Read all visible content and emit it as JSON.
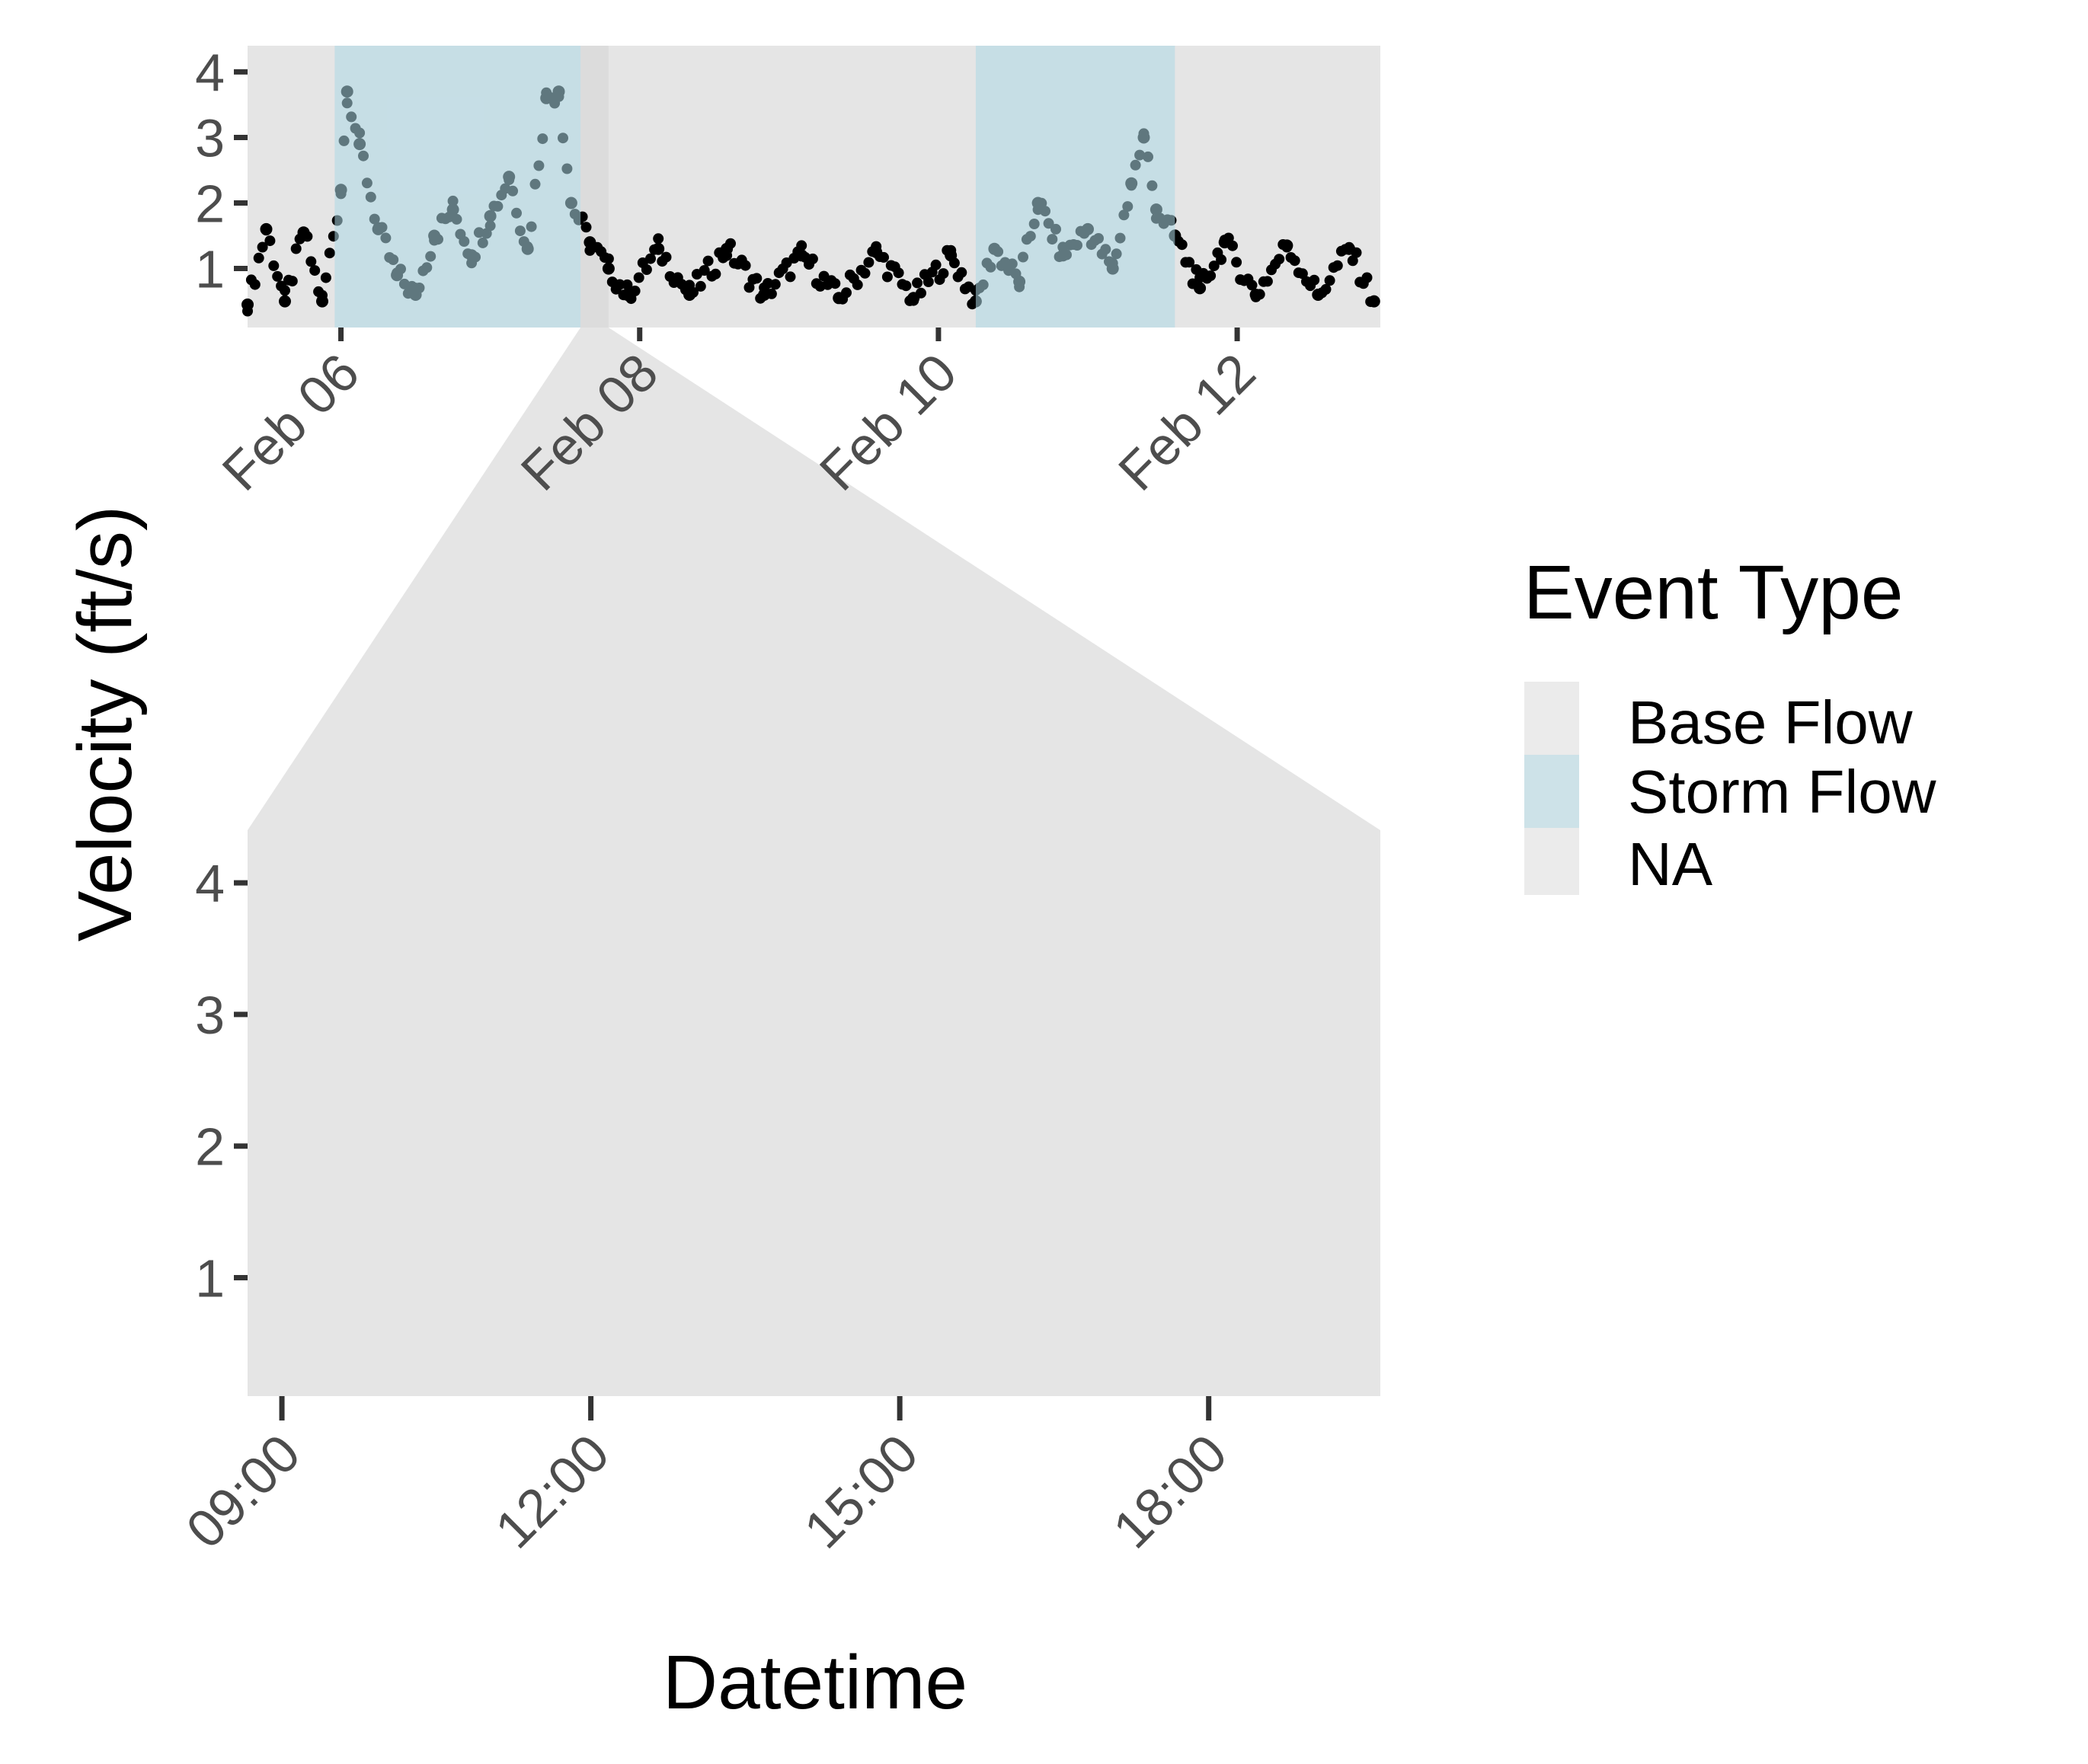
{
  "chart_data": [
    {
      "type": "scatter",
      "panel": "overview",
      "xlabel": "",
      "ylabel": "Velocity (ft/s)",
      "x_type": "datetime",
      "x_range": [
        "2024-02-05T09:00",
        "2024-02-12T23:00"
      ],
      "x_ticks": [
        {
          "value": "2024-02-06T00:00",
          "label": "Feb 06"
        },
        {
          "value": "2024-02-08T00:00",
          "label": "Feb 08"
        },
        {
          "value": "2024-02-10T00:00",
          "label": "Feb 10"
        },
        {
          "value": "2024-02-12T00:00",
          "label": "Feb 12"
        }
      ],
      "ylim": [
        0.1,
        4.4
      ],
      "y_ticks": [
        1,
        2,
        3,
        4
      ],
      "grid": false,
      "point_color": "#000000",
      "shaded_regions": [
        {
          "event": "Base Flow",
          "start": "2024-02-05T09:00",
          "end": "2024-02-05T23:00"
        },
        {
          "event": "Storm Flow",
          "start": "2024-02-05T23:00",
          "end": "2024-02-07T14:30"
        },
        {
          "event": "NA",
          "start": "2024-02-07T14:30",
          "end": "2024-02-07T19:00"
        },
        {
          "event": "Base Flow",
          "start": "2024-02-07T19:00",
          "end": "2024-02-10T06:00"
        },
        {
          "event": "Storm Flow",
          "start": "2024-02-10T06:00",
          "end": "2024-02-11T14:00"
        },
        {
          "event": "Base Flow",
          "start": "2024-02-11T14:00",
          "end": "2024-02-12T23:00"
        }
      ],
      "series": [
        {
          "points": [
            [
              "2024-02-05T09:00",
              0.45
            ],
            [
              "2024-02-05T12:00",
              1.6
            ],
            [
              "2024-02-05T15:00",
              0.5
            ],
            [
              "2024-02-05T18:00",
              1.55
            ],
            [
              "2024-02-05T21:00",
              0.5
            ],
            [
              "2024-02-06T00:00",
              2.2
            ],
            [
              "2024-02-06T01:00",
              3.7
            ],
            [
              "2024-02-06T03:00",
              2.9
            ],
            [
              "2024-02-06T06:00",
              1.6
            ],
            [
              "2024-02-06T09:00",
              0.9
            ],
            [
              "2024-02-06T12:00",
              0.6
            ],
            [
              "2024-02-06T15:00",
              1.5
            ],
            [
              "2024-02-06T18:00",
              1.9
            ],
            [
              "2024-02-06T21:00",
              1.2
            ],
            [
              "2024-02-07T00:00",
              1.8
            ],
            [
              "2024-02-07T03:00",
              2.4
            ],
            [
              "2024-02-07T06:00",
              1.3
            ],
            [
              "2024-02-07T09:00",
              3.6
            ],
            [
              "2024-02-07T11:00",
              3.7
            ],
            [
              "2024-02-07T13:00",
              2.0
            ],
            [
              "2024-02-07T16:00",
              1.4
            ],
            [
              "2024-02-07T19:00",
              1.0
            ],
            [
              "2024-02-07T22:00",
              0.6
            ],
            [
              "2024-02-08T03:00",
              1.3
            ],
            [
              "2024-02-08T08:00",
              0.6
            ],
            [
              "2024-02-08T14:00",
              1.3
            ],
            [
              "2024-02-08T20:00",
              0.6
            ],
            [
              "2024-02-09T02:00",
              1.2
            ],
            [
              "2024-02-09T08:00",
              0.55
            ],
            [
              "2024-02-09T14:00",
              1.25
            ],
            [
              "2024-02-09T20:00",
              0.55
            ],
            [
              "2024-02-10T02:00",
              1.2
            ],
            [
              "2024-02-10T06:00",
              0.5
            ],
            [
              "2024-02-10T09:00",
              1.3
            ],
            [
              "2024-02-10T13:00",
              0.8
            ],
            [
              "2024-02-10T16:00",
              2.0
            ],
            [
              "2024-02-10T20:00",
              1.2
            ],
            [
              "2024-02-11T00:00",
              1.6
            ],
            [
              "2024-02-11T04:00",
              1.0
            ],
            [
              "2024-02-11T07:00",
              2.3
            ],
            [
              "2024-02-11T09:00",
              3.0
            ],
            [
              "2024-02-11T11:00",
              1.9
            ],
            [
              "2024-02-11T14:00",
              1.5
            ],
            [
              "2024-02-11T18:00",
              0.7
            ],
            [
              "2024-02-11T22:00",
              1.4
            ],
            [
              "2024-02-12T03:00",
              0.6
            ],
            [
              "2024-02-12T08:00",
              1.35
            ],
            [
              "2024-02-12T13:00",
              0.6
            ],
            [
              "2024-02-12T18:00",
              1.3
            ],
            [
              "2024-02-12T22:00",
              0.5
            ]
          ]
        }
      ]
    },
    {
      "type": "scatter",
      "panel": "zoomed",
      "xlabel": "Datetime",
      "ylabel": "Velocity (ft/s)",
      "x_type": "time",
      "x_range": [
        "08:40",
        "19:40"
      ],
      "x_ticks": [
        "09:00",
        "12:00",
        "15:00",
        "18:00"
      ],
      "ylim": [
        0.1,
        4.4
      ],
      "y_ticks": [
        1,
        2,
        3,
        4
      ],
      "grid": false,
      "zoom_source": [
        "2024-02-07T14:30",
        "2024-02-07T19:00"
      ],
      "series": []
    }
  ],
  "legend": {
    "title": "Event Type",
    "placement": "right",
    "items": [
      {
        "label": "Base Flow",
        "color": "#ebebeb"
      },
      {
        "label": "Storm Flow",
        "color": "#cde2e8"
      },
      {
        "label": "NA",
        "color": "#ebebeb"
      }
    ]
  },
  "colors": {
    "panel_background": "#e5e5e5",
    "storm_flow_fill": "#add8e6",
    "zoom_connector": "#e5e5e5",
    "tick_color": "#333333",
    "tick_label_color": "#4d4d4d"
  }
}
